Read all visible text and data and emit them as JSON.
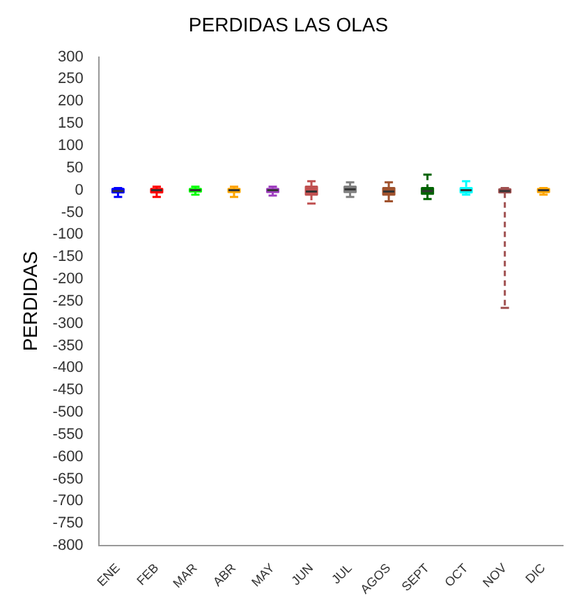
{
  "chart_data": {
    "type": "box",
    "title": "PERDIDAS LAS OLAS",
    "ylabel": "PERDIDAS",
    "categories": [
      "ENE",
      "FEB",
      "MAR",
      "ABR",
      "MAY",
      "JUN",
      "JUL",
      "AGOS",
      "SEPT",
      "OCT",
      "NOV",
      "DIC"
    ],
    "colors": [
      "#0000ff",
      "#ff0000",
      "#00ff00",
      "#ffa500",
      "#a040c0",
      "#c05050",
      "#808080",
      "#a0522d",
      "#006400",
      "#00ffff",
      "#a05050",
      "#ffa500"
    ],
    "boxes": [
      {
        "low": -15,
        "q1": -5,
        "median": -2,
        "q3": 3,
        "high": 5
      },
      {
        "low": -15,
        "q1": -5,
        "median": 0,
        "q3": 3,
        "high": 8
      },
      {
        "low": -10,
        "q1": -3,
        "median": 0,
        "q3": 3,
        "high": 8
      },
      {
        "low": -15,
        "q1": -4,
        "median": 0,
        "q3": 3,
        "high": 8
      },
      {
        "low": -12,
        "q1": -4,
        "median": 0,
        "q3": 3,
        "high": 8
      },
      {
        "low": -30,
        "q1": -10,
        "median": -3,
        "q3": 8,
        "high": 20
      },
      {
        "low": -15,
        "q1": -4,
        "median": 2,
        "q3": 8,
        "high": 18
      },
      {
        "low": -25,
        "q1": -10,
        "median": -3,
        "q3": 5,
        "high": 18
      },
      {
        "low": -20,
        "q1": -8,
        "median": -2,
        "q3": 5,
        "high": 35
      },
      {
        "low": -10,
        "q1": -5,
        "median": 0,
        "q3": 5,
        "high": 20
      },
      {
        "low": -265,
        "q1": -5,
        "median": -2,
        "q3": 2,
        "high": 5
      },
      {
        "low": -10,
        "q1": -4,
        "median": 0,
        "q3": 3,
        "high": 5
      }
    ],
    "ylim": [
      -800,
      300
    ],
    "yticks": [
      300,
      250,
      200,
      150,
      100,
      50,
      0,
      -50,
      -100,
      -150,
      -200,
      -250,
      -300,
      -350,
      -400,
      -450,
      -500,
      -550,
      -600,
      -650,
      -700,
      -750,
      -800
    ],
    "line_style": "dashed",
    "grid": false,
    "legend": false
  }
}
